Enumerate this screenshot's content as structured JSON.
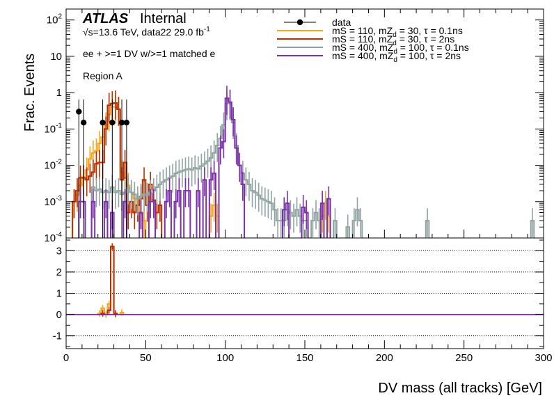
{
  "chart_data": [
    {
      "type": "line",
      "panel": "upper",
      "ylabel": "Frac. Events",
      "y_scale": "log",
      "ylim": [
        0.0001,
        200
      ],
      "xlim": [
        0,
        300
      ],
      "y_ticks": [
        {
          "value": 0.0001,
          "base": "10",
          "exp": "-4"
        },
        {
          "value": 0.001,
          "base": "10",
          "exp": "-3"
        },
        {
          "value": 0.01,
          "base": "10",
          "exp": "-2"
        },
        {
          "value": 0.1,
          "base": "10",
          "exp": "-1"
        },
        {
          "value": 1,
          "base": "1",
          "exp": ""
        },
        {
          "value": 10,
          "base": "10",
          "exp": ""
        },
        {
          "value": 100,
          "base": "10",
          "exp": "2"
        }
      ],
      "annotations": {
        "atlas": "ATLAS",
        "internal": "Internal",
        "energy_prefix": "√s=13.6 TeV, data22 29.0 fb",
        "energy_exp": "-1",
        "selection": "ee + >=1 DV w/>=1 matched e",
        "region": "Region A"
      },
      "legend_position": "top-right",
      "legend": [
        {
          "label": "data",
          "color": "#000000",
          "marker": "point"
        },
        {
          "main": "mS = 110, mZ",
          "sub": "d",
          "rest": " = 30, τ = 0.1ns",
          "color": "#f5a623",
          "marker": "line"
        },
        {
          "main": "mS = 110, mZ",
          "sub": "d",
          "rest": " = 30, τ = 2ns",
          "color": "#b83000",
          "marker": "line"
        },
        {
          "main": "mS = 400, mZ",
          "sub": "d",
          "rest": " = 100, τ = 0.1ns",
          "color": "#8fa3a0",
          "marker": "line"
        },
        {
          "main": "mS = 400, mZ",
          "sub": "d",
          "rest": " = 100, τ = 2ns",
          "color": "#7b2fa8",
          "marker": "line"
        }
      ],
      "data_points": [
        {
          "x": 8,
          "y": 0.3
        },
        {
          "x": 11,
          "y": 0.15
        },
        {
          "x": 23,
          "y": 0.15
        },
        {
          "x": 29,
          "y": 0.15
        },
        {
          "x": 35,
          "y": 0.15
        },
        {
          "x": 38,
          "y": 0.15
        }
      ],
      "series": [
        {
          "name": "mS = 110, mZd = 30, τ = 0.1ns",
          "color": "#f5a623",
          "bins": [
            [
              4,
              6,
              0.001
            ],
            [
              6,
              8,
              0.0015
            ],
            [
              8,
              10,
              0.0028
            ],
            [
              10,
              12,
              0.0048
            ],
            [
              12,
              14,
              0.0075
            ],
            [
              14,
              16,
              0.015
            ],
            [
              16,
              18,
              0.022
            ],
            [
              18,
              20,
              0.025
            ],
            [
              20,
              22,
              0.04
            ],
            [
              22,
              24,
              0.06
            ],
            [
              24,
              26,
              0.13
            ],
            [
              26,
              28,
              0.25
            ],
            [
              28,
              30,
              0.4
            ],
            [
              30,
              32,
              0.4
            ],
            [
              32,
              34,
              0.35
            ],
            [
              34,
              36,
              0.0065
            ],
            [
              36,
              38,
              0.0045
            ],
            [
              38,
              40,
              0.0028
            ],
            [
              40,
              42,
              0.0018
            ],
            [
              42,
              44,
              0.0012
            ],
            [
              44,
              46,
              0.0008
            ],
            [
              46,
              48,
              0.0005
            ],
            [
              48,
              50,
              0.0003
            ],
            [
              90,
              92,
              0.0004
            ],
            [
              92,
              94,
              0.0008
            ],
            [
              94,
              96,
              0.0004
            ],
            [
              160,
              162,
              0.0004
            ],
            [
              162,
              164,
              0.0009
            ],
            [
              164,
              166,
              0.0004
            ]
          ]
        },
        {
          "name": "mS = 110, mZd = 30, τ = 2ns",
          "color": "#b83000",
          "bins": [
            [
              4,
              6,
              0.001
            ],
            [
              6,
              8,
              0.002
            ],
            [
              8,
              10,
              0.0045
            ],
            [
              10,
              12,
              0.0045
            ],
            [
              12,
              14,
              0.004
            ],
            [
              14,
              16,
              0.005
            ],
            [
              16,
              18,
              0.0065
            ],
            [
              18,
              20,
              0.011
            ],
            [
              20,
              22,
              0.012
            ],
            [
              22,
              24,
              0.012
            ],
            [
              24,
              26,
              0.1
            ],
            [
              26,
              28,
              0.45
            ],
            [
              28,
              30,
              0.5
            ],
            [
              30,
              32,
              0.52
            ],
            [
              32,
              34,
              0.35
            ],
            [
              34,
              36,
              0.004
            ],
            [
              36,
              38,
              0.012
            ],
            [
              38,
              40,
              0.0005
            ],
            [
              40,
              42,
              0.001
            ],
            [
              42,
              44,
              0.0005
            ],
            [
              44,
              46,
              0.0008
            ],
            [
              46,
              48,
              0.0012
            ],
            [
              48,
              50,
              0.004
            ],
            [
              50,
              52,
              0.0008
            ],
            [
              52,
              54,
              0.003
            ],
            [
              54,
              56,
              0.0011
            ],
            [
              56,
              58,
              0.0005
            ],
            [
              58,
              60,
              0.0008
            ]
          ]
        },
        {
          "name": "mS = 400, mZd = 100, τ = 0.1ns",
          "color": "#8fa3a0",
          "bins": [
            [
              16,
              18,
              0.0025
            ],
            [
              18,
              20,
              0.002
            ],
            [
              20,
              22,
              0.0022
            ],
            [
              22,
              24,
              0.0018
            ],
            [
              24,
              26,
              0.002
            ],
            [
              26,
              28,
              0.0018
            ],
            [
              28,
              30,
              0.0025
            ],
            [
              30,
              32,
              0.0018
            ],
            [
              32,
              34,
              0.002
            ],
            [
              34,
              36,
              0.0016
            ],
            [
              36,
              38,
              0.0018
            ],
            [
              38,
              40,
              0.0024
            ],
            [
              40,
              42,
              0.0018
            ],
            [
              42,
              44,
              0.0016
            ],
            [
              44,
              46,
              0.0012
            ],
            [
              46,
              48,
              0.0014
            ],
            [
              48,
              50,
              0.0016
            ],
            [
              50,
              52,
              0.0015
            ],
            [
              52,
              54,
              0.0018
            ],
            [
              54,
              56,
              0.002
            ],
            [
              56,
              58,
              0.0025
            ],
            [
              58,
              60,
              0.003
            ],
            [
              60,
              62,
              0.0035
            ],
            [
              62,
              64,
              0.004
            ],
            [
              64,
              66,
              0.0045
            ],
            [
              66,
              68,
              0.005
            ],
            [
              68,
              70,
              0.006
            ],
            [
              70,
              72,
              0.0065
            ],
            [
              72,
              74,
              0.007
            ],
            [
              74,
              76,
              0.0075
            ],
            [
              76,
              78,
              0.008
            ],
            [
              78,
              80,
              0.0075
            ],
            [
              80,
              82,
              0.0085
            ],
            [
              82,
              84,
              0.008
            ],
            [
              84,
              86,
              0.0095
            ],
            [
              86,
              88,
              0.011
            ],
            [
              88,
              90,
              0.013
            ],
            [
              90,
              92,
              0.016
            ],
            [
              92,
              94,
              0.022
            ],
            [
              94,
              96,
              0.035
            ],
            [
              96,
              98,
              0.055
            ],
            [
              98,
              100,
              0.13
            ],
            [
              100,
              102,
              0.5
            ],
            [
              102,
              104,
              0.5
            ],
            [
              104,
              106,
              0.15
            ],
            [
              106,
              108,
              0.035
            ],
            [
              108,
              110,
              0.01
            ],
            [
              110,
              112,
              0.006
            ],
            [
              112,
              114,
              0.004
            ],
            [
              114,
              116,
              0.003
            ],
            [
              116,
              118,
              0.002
            ],
            [
              118,
              120,
              0.0018
            ],
            [
              120,
              122,
              0.0015
            ],
            [
              122,
              124,
              0.0012
            ],
            [
              124,
              126,
              0.0011
            ],
            [
              126,
              128,
              0.001
            ],
            [
              128,
              130,
              0.0009
            ],
            [
              130,
              132,
              0.0006
            ],
            [
              132,
              134,
              0.0003
            ],
            [
              134,
              136,
              0.0003
            ],
            [
              136,
              138,
              0.0003
            ],
            [
              138,
              140,
              0.0006
            ],
            [
              140,
              142,
              0.0005
            ],
            [
              142,
              144,
              0.0004
            ],
            [
              144,
              146,
              0.0006
            ],
            [
              146,
              148,
              0.0004
            ],
            [
              148,
              150,
              0.0003
            ],
            [
              150,
              152,
              0.0003
            ],
            [
              154,
              156,
              0.0003
            ],
            [
              156,
              158,
              0.0005
            ],
            [
              158,
              160,
              0.0003
            ],
            [
              168,
              170,
              0.0003
            ],
            [
              176,
              178,
              0.0002
            ],
            [
              180,
              182,
              0.0003
            ],
            [
              182,
              184,
              0.0006
            ],
            [
              184,
              186,
              0.0003
            ],
            [
              226,
              228,
              0.0003
            ],
            [
              292,
              294,
              0.0003
            ]
          ]
        },
        {
          "name": "mS = 400, mZd = 100, τ = 2ns",
          "color": "#7b2fa8",
          "bins": [
            [
              8,
              10,
              0.001
            ],
            [
              10,
              12,
              0.001
            ],
            [
              16,
              18,
              0.001
            ],
            [
              24,
              26,
              0.001
            ],
            [
              28,
              30,
              0.0005
            ],
            [
              36,
              38,
              0.001
            ],
            [
              46,
              48,
              0.0005
            ],
            [
              52,
              54,
              0.001
            ],
            [
              54,
              56,
              0.001
            ],
            [
              62,
              64,
              0.001
            ],
            [
              64,
              66,
              0.002
            ],
            [
              68,
              70,
              0.001
            ],
            [
              70,
              72,
              0.002
            ],
            [
              74,
              76,
              0.002
            ],
            [
              76,
              78,
              0.002
            ],
            [
              82,
              84,
              0.002
            ],
            [
              86,
              88,
              0.004
            ],
            [
              90,
              92,
              0.004
            ],
            [
              92,
              94,
              0.006
            ],
            [
              96,
              98,
              0.03
            ],
            [
              98,
              100,
              0.045
            ],
            [
              100,
              102,
              0.7
            ],
            [
              102,
              104,
              0.55
            ],
            [
              104,
              106,
              0.18
            ],
            [
              106,
              108,
              0.03
            ],
            [
              108,
              110,
              0.01
            ],
            [
              110,
              112,
              0.003
            ],
            [
              136,
              138,
              0.0006
            ],
            [
              138,
              140,
              0.0009
            ],
            [
              148,
              150,
              0.0007
            ],
            [
              150,
              152,
              0.0005
            ],
            [
              160,
              162,
              0.0009
            ],
            [
              164,
              166,
              0.0012
            ]
          ]
        }
      ]
    },
    {
      "type": "line",
      "panel": "lower",
      "xlabel": "DV mass (all tracks) [GeV]",
      "xlim": [
        0,
        300
      ],
      "ylim": [
        -1.6,
        3.6
      ],
      "x_ticks": [
        0,
        50,
        100,
        150,
        200,
        250,
        300
      ],
      "y_ticks": [
        -1,
        0,
        1,
        2,
        3
      ],
      "grid_lines": [
        -1,
        0,
        1,
        2,
        3
      ],
      "series": [
        {
          "name": "mS = 110, mZd = 30, τ = 0.1ns",
          "color": "#f5a623",
          "bins": [
            [
              20,
              22,
              0.05
            ],
            [
              22,
              24,
              0.3
            ],
            [
              24,
              26,
              0.0
            ],
            [
              26,
              28,
              0.5
            ],
            [
              28,
              30,
              3.2
            ],
            [
              30,
              32,
              0.0
            ],
            [
              34,
              36,
              0.1
            ]
          ]
        },
        {
          "name": "mS = 110, mZd = 30, τ = 2ns",
          "color": "#b83000",
          "bins": [
            [
              22,
              24,
              0.05
            ],
            [
              26,
              28,
              0.2
            ],
            [
              28,
              30,
              3.2
            ],
            [
              30,
              32,
              0.05
            ]
          ]
        },
        {
          "name": "mS = 400, mZd = 100, τ = 2ns",
          "color": "#7b2fa8",
          "bins": [
            [
              0,
              300,
              0.0
            ]
          ]
        }
      ]
    }
  ]
}
